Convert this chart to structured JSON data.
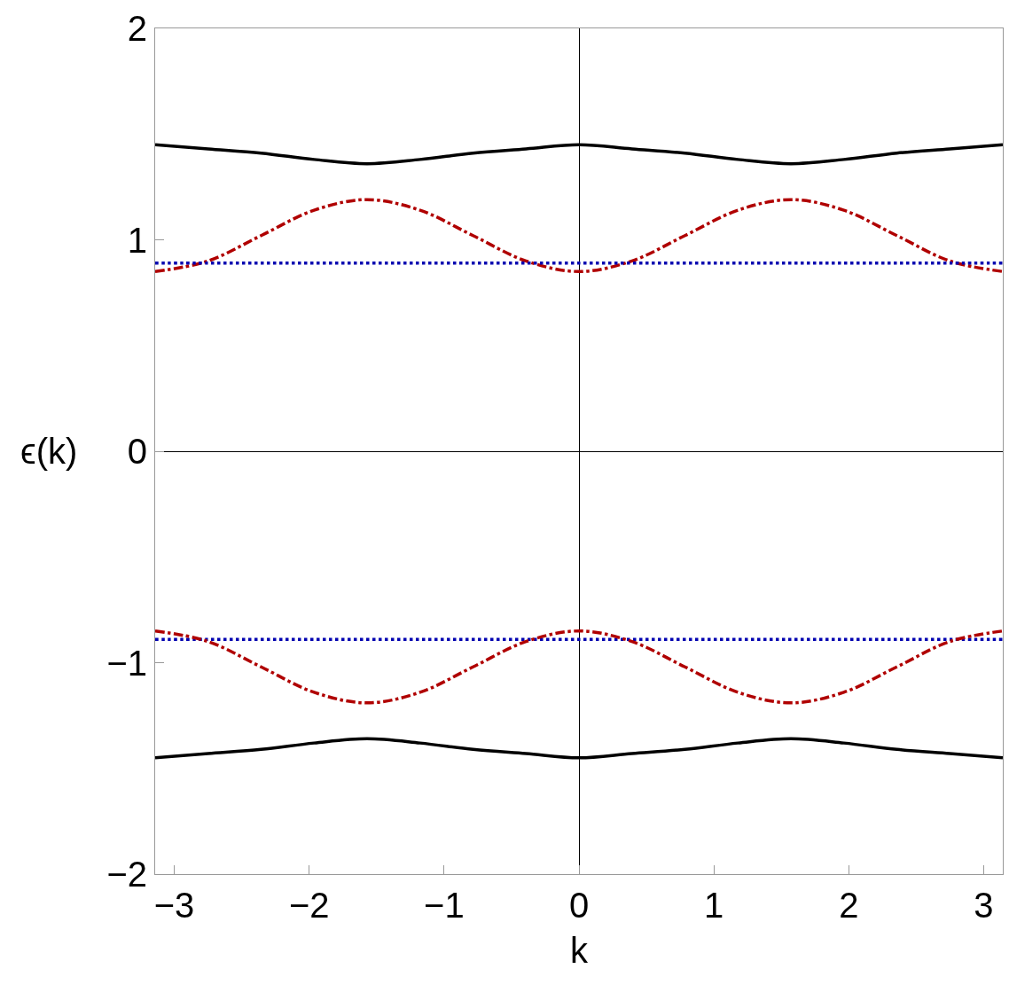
{
  "chart_data": {
    "type": "line",
    "xlabel": "k",
    "ylabel": "ϵ(k)",
    "x": [
      -3.1416,
      -2.7489,
      -2.3562,
      -1.9635,
      -1.5708,
      -1.1781,
      -0.7854,
      -0.3927,
      0,
      0.3927,
      0.7854,
      1.1781,
      1.5708,
      1.9635,
      2.3562,
      2.7489,
      3.1416
    ],
    "series": [
      {
        "color": "#000000",
        "line_style": "solid",
        "values": [
          1.45,
          1.43,
          1.41,
          1.38,
          1.36,
          1.38,
          1.41,
          1.43,
          1.45,
          1.43,
          1.41,
          1.38,
          1.36,
          1.38,
          1.41,
          1.43,
          1.45
        ]
      },
      {
        "color": "#b00000",
        "line_style": "dashdot",
        "values": [
          0.85,
          0.9,
          1.02,
          1.14,
          1.19,
          1.14,
          1.02,
          0.9,
          0.85,
          0.9,
          1.02,
          1.14,
          1.19,
          1.14,
          1.02,
          0.9,
          0.85
        ]
      },
      {
        "color": "#0000b0",
        "line_style": "dotted",
        "values": [
          0.89,
          0.89,
          0.89,
          0.89,
          0.89,
          0.89,
          0.89,
          0.89,
          0.89,
          0.89,
          0.89,
          0.89,
          0.89,
          0.89,
          0.89,
          0.89,
          0.89
        ]
      },
      {
        "color": "#0000b0",
        "line_style": "dotted",
        "values": [
          -0.89,
          -0.89,
          -0.89,
          -0.89,
          -0.89,
          -0.89,
          -0.89,
          -0.89,
          -0.89,
          -0.89,
          -0.89,
          -0.89,
          -0.89,
          -0.89,
          -0.89,
          -0.89,
          -0.89
        ]
      },
      {
        "color": "#b00000",
        "line_style": "dashdot",
        "values": [
          -0.85,
          -0.9,
          -1.02,
          -1.14,
          -1.19,
          -1.14,
          -1.02,
          -0.9,
          -0.85,
          -0.9,
          -1.02,
          -1.14,
          -1.19,
          -1.14,
          -1.02,
          -0.9,
          -0.85
        ]
      },
      {
        "color": "#000000",
        "line_style": "solid",
        "values": [
          -1.45,
          -1.43,
          -1.41,
          -1.38,
          -1.36,
          -1.38,
          -1.41,
          -1.43,
          -1.45,
          -1.43,
          -1.41,
          -1.38,
          -1.36,
          -1.38,
          -1.41,
          -1.43,
          -1.45
        ]
      }
    ],
    "xlim": [
      -3.1416,
      3.1416
    ],
    "xticks": [
      {
        "value": -3,
        "label": "−3"
      },
      {
        "value": -2,
        "label": "−2"
      },
      {
        "value": -1,
        "label": "−1"
      },
      0,
      1,
      2,
      3
    ],
    "ylim": [
      -2,
      2
    ],
    "yticks": [
      {
        "value": -2,
        "label": "−2"
      },
      {
        "value": -1,
        "label": "−1"
      },
      0,
      1,
      2
    ]
  }
}
